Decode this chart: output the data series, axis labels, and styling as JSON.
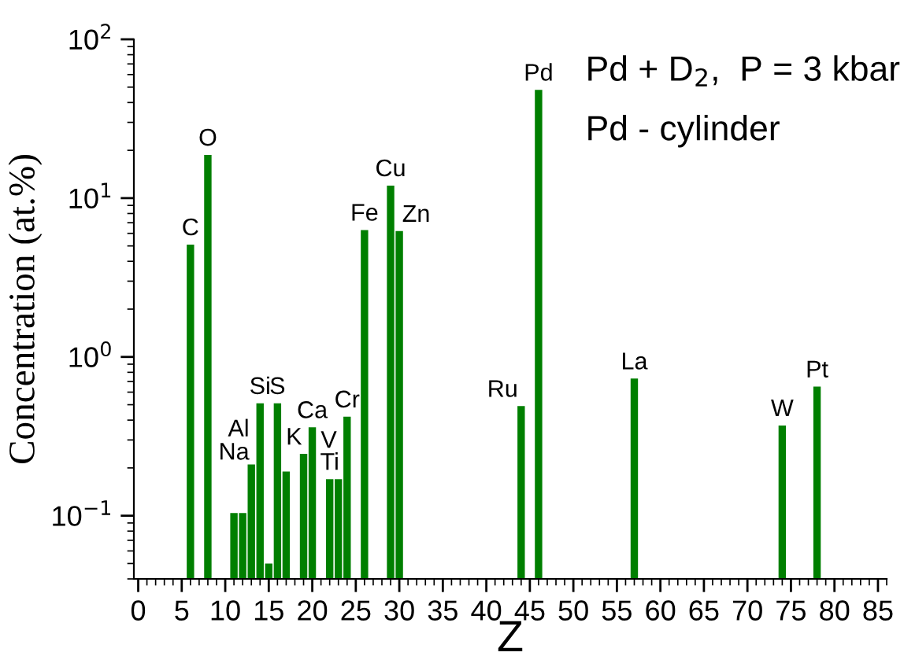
{
  "chart_data": {
    "type": "bar",
    "x": [
      6,
      8,
      11,
      12,
      13,
      14,
      15,
      16,
      17,
      19,
      20,
      22,
      23,
      24,
      26,
      29,
      30,
      44,
      46,
      57,
      74,
      78
    ],
    "values": [
      5.1,
      18.7,
      0.104,
      0.104,
      0.21,
      0.51,
      0.05,
      0.51,
      0.19,
      0.245,
      0.36,
      0.17,
      0.17,
      0.42,
      6.3,
      12,
      6.2,
      0.49,
      48,
      0.73,
      0.37,
      0.65
    ],
    "color": "#007f00",
    "xlabel": "Z",
    "ylabel": "Concentration (at.%)",
    "log": "y",
    "xlim": [
      -0.5,
      86
    ],
    "ylim": [
      0.04,
      100
    ],
    "xticks": [
      0,
      5,
      10,
      15,
      20,
      25,
      30,
      35,
      40,
      45,
      50,
      55,
      60,
      65,
      70,
      75,
      80,
      85
    ],
    "yticks": [
      {
        "value": 0.1,
        "label": "10$^{−1}$"
      },
      {
        "value": 1,
        "label": "10$^{0}$"
      },
      {
        "value": 10,
        "label": "10$^{1}$"
      },
      {
        "value": 100,
        "label": "10$^{2}$"
      }
    ],
    "grid": false,
    "legend": false,
    "annotations": [
      "Pd + D$_{2}$,  P = 3 kbar",
      "Pd - cylinder",
      {
        "text": "C",
        "x": 6,
        "y": 5.1
      },
      {
        "text": "O",
        "x": 8,
        "y": 18.7
      },
      {
        "text": "Na",
        "x": 11,
        "y": 0.104
      },
      {
        "text": "Al",
        "x": 13,
        "y": 0.21
      },
      {
        "text": "Si",
        "x": 14,
        "y": 0.51
      },
      {
        "text": "S",
        "x": 16,
        "y": 0.51
      },
      {
        "text": "K",
        "x": 19,
        "y": 0.245
      },
      {
        "text": "Ca",
        "x": 20,
        "y": 0.36
      },
      {
        "text": "Ti",
        "x": 22,
        "y": 0.17
      },
      {
        "text": "V",
        "x": 23,
        "y": 0.17
      },
      {
        "text": "Cr",
        "x": 24,
        "y": 0.42
      },
      {
        "text": "Fe",
        "x": 26,
        "y": 6.3
      },
      {
        "text": "Cu",
        "x": 29,
        "y": 12
      },
      {
        "text": "Zn",
        "x": 30,
        "y": 6.2
      },
      {
        "text": "Ru",
        "x": 44,
        "y": 0.49
      },
      {
        "text": "Pd",
        "x": 46,
        "y": 48
      },
      {
        "text": "La",
        "x": 57,
        "y": 0.73
      },
      {
        "text": "W",
        "x": 74,
        "y": 0.37
      },
      {
        "text": "Pt",
        "x": 78,
        "y": 0.65
      }
    ]
  }
}
